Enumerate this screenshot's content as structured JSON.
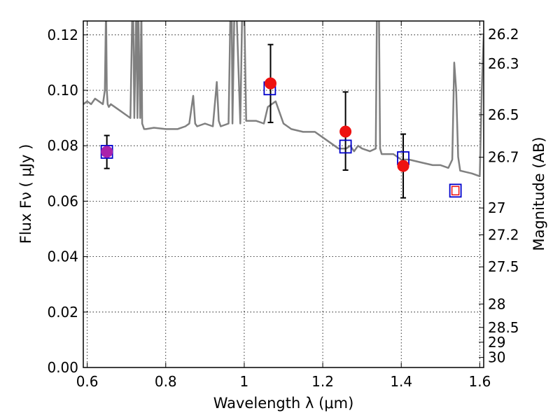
{
  "chart_data": {
    "type": "scatter",
    "xlabel": "Wavelength  λ (μm)",
    "ylabel": "Flux  Fν  ( μJy )",
    "y2label": "Magnitude (AB)",
    "xlim": [
      0.59,
      1.61
    ],
    "ylim": [
      0.0,
      0.125
    ],
    "grid": true,
    "x_ticks": [
      {
        "value": 0.6,
        "label": "0.6"
      },
      {
        "value": 0.8,
        "label": "0.8"
      },
      {
        "value": 1.0,
        "label": "1"
      },
      {
        "value": 1.2,
        "label": "1.2"
      },
      {
        "value": 1.4,
        "label": "1.4"
      },
      {
        "value": 1.6,
        "label": "1.6"
      }
    ],
    "y_ticks": [
      {
        "value": 0.0,
        "label": "0.00"
      },
      {
        "value": 0.02,
        "label": "0.02"
      },
      {
        "value": 0.04,
        "label": "0.04"
      },
      {
        "value": 0.06,
        "label": "0.06"
      },
      {
        "value": 0.08,
        "label": "0.08"
      },
      {
        "value": 0.1,
        "label": "0.10"
      },
      {
        "value": 0.12,
        "label": "0.12"
      }
    ],
    "y2_ticks": [
      {
        "value": 26.2,
        "label": "26.2"
      },
      {
        "value": 26.3,
        "label": "26.3"
      },
      {
        "value": 26.5,
        "label": "26.5"
      },
      {
        "value": 26.7,
        "label": "26.7"
      },
      {
        "value": 27.0,
        "label": "27"
      },
      {
        "value": 27.2,
        "label": "27.2"
      },
      {
        "value": 27.5,
        "label": "27.5"
      },
      {
        "value": 28.0,
        "label": "28"
      },
      {
        "value": 28.5,
        "label": "28.5"
      },
      {
        "value": 29.0,
        "label": "29"
      },
      {
        "value": 30.0,
        "label": "30"
      }
    ],
    "series": [
      {
        "kind": "spectrum-line",
        "color": "#808080",
        "x": [
          0.59,
          0.6,
          0.61,
          0.62,
          0.63,
          0.64,
          0.645,
          0.648,
          0.65,
          0.652,
          0.655,
          0.66,
          0.68,
          0.7,
          0.71,
          0.715,
          0.717,
          0.72,
          0.725,
          0.728,
          0.73,
          0.735,
          0.738,
          0.74,
          0.745,
          0.75,
          0.77,
          0.8,
          0.83,
          0.85,
          0.86,
          0.865,
          0.87,
          0.875,
          0.88,
          0.9,
          0.92,
          0.925,
          0.93,
          0.935,
          0.94,
          0.96,
          0.965,
          0.968,
          0.97,
          0.975,
          0.98,
          0.99,
          0.995,
          1.0,
          1.005,
          1.01,
          1.03,
          1.05,
          1.06,
          1.08,
          1.09,
          1.1,
          1.12,
          1.15,
          1.18,
          1.2,
          1.22,
          1.24,
          1.26,
          1.27,
          1.28,
          1.29,
          1.3,
          1.32,
          1.335,
          1.338,
          1.34,
          1.343,
          1.346,
          1.35,
          1.38,
          1.4,
          1.42,
          1.45,
          1.48,
          1.5,
          1.52,
          1.53,
          1.535,
          1.54,
          1.545,
          1.55,
          1.58,
          1.6,
          1.605,
          1.61
        ],
        "y": [
          0.095,
          0.096,
          0.095,
          0.097,
          0.096,
          0.095,
          0.1,
          0.13,
          0.1,
          0.095,
          0.094,
          0.095,
          0.093,
          0.091,
          0.09,
          0.13,
          0.13,
          0.09,
          0.13,
          0.09,
          0.13,
          0.09,
          0.13,
          0.088,
          0.086,
          0.086,
          0.0865,
          0.086,
          0.086,
          0.087,
          0.088,
          0.093,
          0.098,
          0.088,
          0.087,
          0.088,
          0.087,
          0.095,
          0.103,
          0.089,
          0.087,
          0.088,
          0.13,
          0.13,
          0.088,
          0.13,
          0.13,
          0.088,
          0.13,
          0.13,
          0.089,
          0.089,
          0.089,
          0.088,
          0.094,
          0.096,
          0.092,
          0.088,
          0.086,
          0.085,
          0.085,
          0.083,
          0.081,
          0.079,
          0.079,
          0.08,
          0.078,
          0.08,
          0.079,
          0.078,
          0.079,
          0.13,
          0.13,
          0.13,
          0.079,
          0.077,
          0.077,
          0.075,
          0.075,
          0.074,
          0.073,
          0.073,
          0.072,
          0.075,
          0.11,
          0.1,
          0.076,
          0.071,
          0.07,
          0.069,
          0.1,
          0.12
        ]
      },
      {
        "kind": "model-squares",
        "color": "#0000cc",
        "x": [
          0.65,
          1.065,
          1.258,
          1.405,
          1.538
        ],
        "y": [
          0.0778,
          0.1007,
          0.0797,
          0.0755,
          0.0638
        ]
      },
      {
        "kind": "observed-points",
        "color": "#ee1111",
        "x": [
          0.65,
          1.067,
          1.258,
          1.405
        ],
        "y": [
          0.0778,
          0.1025,
          0.0851,
          0.0727
        ],
        "yerr_low": [
          0.0718,
          0.0884,
          0.0712,
          0.0612
        ],
        "yerr_high": [
          0.0837,
          0.1165,
          0.0994,
          0.0842
        ],
        "fill_colors": [
          "#aa22aa",
          "#ee1111",
          "#ee1111",
          "#ee1111"
        ]
      },
      {
        "kind": "upper-limit-square",
        "color": "#ee1111",
        "x": [
          1.538
        ],
        "y": [
          0.0638
        ]
      }
    ]
  }
}
